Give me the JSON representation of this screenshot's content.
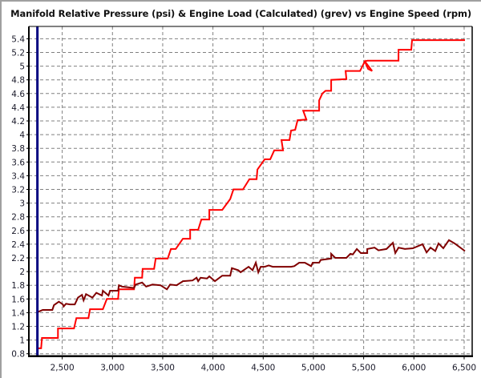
{
  "chart_data": {
    "type": "line",
    "title": "Manifold Relative Pressure (psi) & Engine Load (Calculated) (grev) vs Engine Speed (rpm)",
    "xlabel": "Engine Speed (rpm)",
    "ylabel": "",
    "xlim": [
      2168,
      6580
    ],
    "ylim": [
      0.765,
      5.58
    ],
    "grid": true,
    "x_ticks": [
      2500,
      3000,
      3500,
      4000,
      4500,
      5000,
      5500,
      6000,
      6500
    ],
    "x_tick_labels": [
      "2,500",
      "3,000",
      "3,500",
      "4,000",
      "4,500",
      "5,000",
      "5,500",
      "6,000",
      "6,500"
    ],
    "y_ticks": [
      0.8,
      1,
      1.2,
      1.4,
      1.6,
      1.8,
      2,
      2.2,
      2.4,
      2.6,
      2.8,
      3,
      3.2,
      3.4,
      3.6,
      3.8,
      4,
      4.2,
      4.4,
      4.6,
      4.8,
      5,
      5.2,
      5.4
    ],
    "y_tick_labels": [
      "0.8",
      "1",
      "1.2",
      "1.4",
      "1.6",
      "1.8",
      "2",
      "2.2",
      "2.4",
      "2.6",
      "2.8",
      "3",
      "3.2",
      "3.4",
      "3.6",
      "3.8",
      "4",
      "4.2",
      "4.4",
      "4.6",
      "4.8",
      "5",
      "5.2",
      "5.4"
    ],
    "cursor_x": 2253,
    "cursor_color": "#000080",
    "series": [
      {
        "name": "Manifold Relative Pressure (psi)",
        "color": "#ff0000",
        "points": [
          [
            2258,
            0.88
          ],
          [
            2290,
            0.88
          ],
          [
            2298,
            1.03
          ],
          [
            2458,
            1.03
          ],
          [
            2458,
            1.17
          ],
          [
            2617,
            1.17
          ],
          [
            2641,
            1.32
          ],
          [
            2761,
            1.32
          ],
          [
            2777,
            1.45
          ],
          [
            2904,
            1.45
          ],
          [
            2944,
            1.6
          ],
          [
            3056,
            1.6
          ],
          [
            3064,
            1.74
          ],
          [
            3215,
            1.74
          ],
          [
            3223,
            1.91
          ],
          [
            3295,
            1.91
          ],
          [
            3300,
            2.04
          ],
          [
            3414,
            2.04
          ],
          [
            3430,
            2.19
          ],
          [
            3550,
            2.19
          ],
          [
            3582,
            2.33
          ],
          [
            3630,
            2.33
          ],
          [
            3701,
            2.48
          ],
          [
            3773,
            2.48
          ],
          [
            3773,
            2.61
          ],
          [
            3853,
            2.61
          ],
          [
            3885,
            2.76
          ],
          [
            3964,
            2.76
          ],
          [
            3964,
            2.9
          ],
          [
            4092,
            2.9
          ],
          [
            4172,
            3.06
          ],
          [
            4204,
            3.2
          ],
          [
            4299,
            3.2
          ],
          [
            4363,
            3.35
          ],
          [
            4435,
            3.35
          ],
          [
            4443,
            3.49
          ],
          [
            4515,
            3.64
          ],
          [
            4570,
            3.64
          ],
          [
            4610,
            3.77
          ],
          [
            4698,
            3.77
          ],
          [
            4682,
            3.92
          ],
          [
            4762,
            3.92
          ],
          [
            4778,
            4.06
          ],
          [
            4818,
            4.07
          ],
          [
            4842,
            4.21
          ],
          [
            4930,
            4.22
          ],
          [
            4898,
            4.35
          ],
          [
            5057,
            4.35
          ],
          [
            5057,
            4.5
          ],
          [
            5089,
            4.6
          ],
          [
            5121,
            4.64
          ],
          [
            5177,
            4.64
          ],
          [
            5177,
            4.8
          ],
          [
            5328,
            4.81
          ],
          [
            5320,
            4.93
          ],
          [
            5464,
            4.93
          ],
          [
            5512,
            5.07
          ],
          [
            5544,
            4.96
          ],
          [
            5584,
            4.93
          ],
          [
            5512,
            5.07
          ],
          [
            5536,
            5.08
          ],
          [
            5847,
            5.08
          ],
          [
            5847,
            5.24
          ],
          [
            5974,
            5.24
          ],
          [
            5982,
            5.38
          ],
          [
            6508,
            5.38
          ]
        ]
      },
      {
        "name": "Engine Load (Calculated) (grev)",
        "color": "#800000",
        "points": [
          [
            2258,
            1.41
          ],
          [
            2306,
            1.44
          ],
          [
            2402,
            1.44
          ],
          [
            2418,
            1.51
          ],
          [
            2466,
            1.56
          ],
          [
            2506,
            1.52
          ],
          [
            2514,
            1.49
          ],
          [
            2537,
            1.53
          ],
          [
            2577,
            1.52
          ],
          [
            2625,
            1.52
          ],
          [
            2657,
            1.62
          ],
          [
            2697,
            1.66
          ],
          [
            2713,
            1.58
          ],
          [
            2737,
            1.67
          ],
          [
            2801,
            1.62
          ],
          [
            2840,
            1.69
          ],
          [
            2896,
            1.65
          ],
          [
            2904,
            1.72
          ],
          [
            2960,
            1.65
          ],
          [
            2976,
            1.72
          ],
          [
            3056,
            1.72
          ],
          [
            3064,
            1.8
          ],
          [
            3096,
            1.78
          ],
          [
            3215,
            1.76
          ],
          [
            3231,
            1.81
          ],
          [
            3295,
            1.84
          ],
          [
            3335,
            1.78
          ],
          [
            3398,
            1.81
          ],
          [
            3478,
            1.8
          ],
          [
            3542,
            1.74
          ],
          [
            3574,
            1.81
          ],
          [
            3638,
            1.8
          ],
          [
            3693,
            1.85
          ],
          [
            3701,
            1.86
          ],
          [
            3797,
            1.87
          ],
          [
            3837,
            1.91
          ],
          [
            3853,
            1.86
          ],
          [
            3877,
            1.91
          ],
          [
            3941,
            1.9
          ],
          [
            3964,
            1.93
          ],
          [
            4020,
            1.86
          ],
          [
            4092,
            1.94
          ],
          [
            4172,
            1.94
          ],
          [
            4188,
            2.05
          ],
          [
            4252,
            2.02
          ],
          [
            4276,
            1.99
          ],
          [
            4355,
            2.07
          ],
          [
            4395,
            2.02
          ],
          [
            4427,
            2.13
          ],
          [
            4451,
            1.99
          ],
          [
            4475,
            2.07
          ],
          [
            4515,
            2.07
          ],
          [
            4555,
            2.09
          ],
          [
            4595,
            2.07
          ],
          [
            4778,
            2.07
          ],
          [
            4810,
            2.08
          ],
          [
            4858,
            2.13
          ],
          [
            4914,
            2.13
          ],
          [
            4977,
            2.08
          ],
          [
            4993,
            2.13
          ],
          [
            5057,
            2.13
          ],
          [
            5073,
            2.17
          ],
          [
            5177,
            2.19
          ],
          [
            5177,
            2.26
          ],
          [
            5217,
            2.2
          ],
          [
            5328,
            2.2
          ],
          [
            5368,
            2.26
          ],
          [
            5392,
            2.25
          ],
          [
            5432,
            2.33
          ],
          [
            5472,
            2.27
          ],
          [
            5536,
            2.27
          ],
          [
            5536,
            2.33
          ],
          [
            5608,
            2.35
          ],
          [
            5647,
            2.31
          ],
          [
            5727,
            2.33
          ],
          [
            5791,
            2.42
          ],
          [
            5815,
            2.27
          ],
          [
            5847,
            2.35
          ],
          [
            5911,
            2.33
          ],
          [
            5990,
            2.34
          ],
          [
            6086,
            2.4
          ],
          [
            6126,
            2.28
          ],
          [
            6165,
            2.35
          ],
          [
            6213,
            2.3
          ],
          [
            6245,
            2.41
          ],
          [
            6293,
            2.34
          ],
          [
            6349,
            2.46
          ],
          [
            6405,
            2.41
          ],
          [
            6452,
            2.36
          ],
          [
            6508,
            2.3
          ]
        ]
      }
    ]
  }
}
